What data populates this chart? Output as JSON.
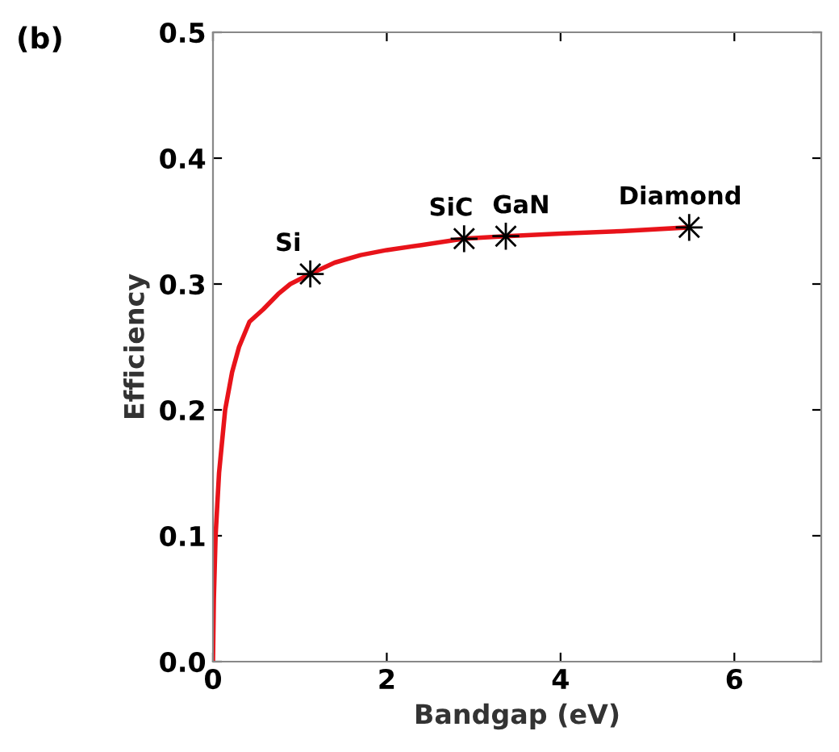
{
  "chart_data": {
    "type": "line",
    "xlabel": "Bandgap (eV)",
    "ylabel": "Efficiency",
    "xlim": [
      0,
      7
    ],
    "ylim": [
      0,
      0.5
    ],
    "xticks": [
      0,
      2,
      4,
      6
    ],
    "yticks": [
      {
        "value": 0,
        "label": "0.0"
      },
      0.1,
      0.2,
      0.3,
      0.4,
      0.5
    ],
    "grid": false,
    "legend": false,
    "series": [
      {
        "color": "#e8131a",
        "marker": "none",
        "line_style": "solid",
        "x": [
          0,
          0.01,
          0.03,
          0.07,
          0.14,
          0.22,
          0.3,
          0.42,
          0.58,
          0.75,
          0.89,
          1.12,
          1.4,
          1.7,
          2.0,
          2.4,
          2.89,
          3.37,
          4.0,
          4.7,
          5.48
        ],
        "values": [
          0,
          0.05,
          0.1,
          0.15,
          0.2,
          0.23,
          0.25,
          0.27,
          0.28,
          0.292,
          0.3,
          0.308,
          0.317,
          0.323,
          0.327,
          0.331,
          0.336,
          0.338,
          0.34,
          0.342,
          0.345
        ]
      },
      {
        "type": "scatter",
        "color": "#000000",
        "marker": "cross",
        "x": [
          1.12,
          2.89,
          3.37,
          5.48
        ],
        "values": [
          0.308,
          0.336,
          0.338,
          0.345
        ]
      }
    ],
    "annotations": [
      "(b)",
      {
        "text": "Si",
        "x": 1.12,
        "y": 0.308
      },
      {
        "text": "SiC",
        "x": 2.89,
        "y": 0.336
      },
      {
        "text": "GaN",
        "x": 3.37,
        "y": 0.338
      },
      {
        "text": "Diamond",
        "x": 5.48,
        "y": 0.345
      }
    ]
  }
}
